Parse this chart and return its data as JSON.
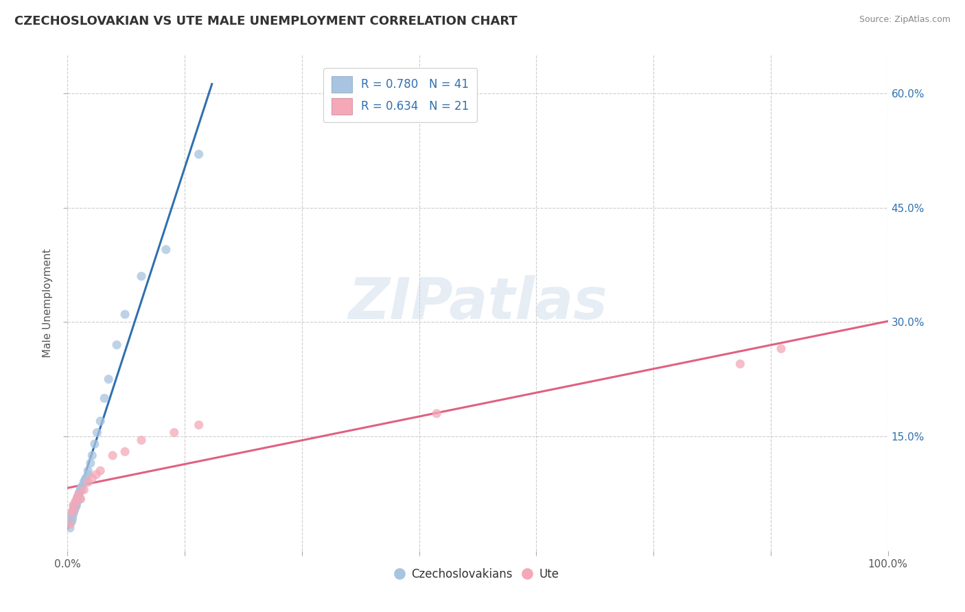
{
  "title": "CZECHOSLOVAKIAN VS UTE MALE UNEMPLOYMENT CORRELATION CHART",
  "source_text": "Source: ZipAtlas.com",
  "ylabel": "Male Unemployment",
  "xlim": [
    0,
    1.0
  ],
  "ylim": [
    0,
    0.65
  ],
  "ytick_values": [
    0.15,
    0.3,
    0.45,
    0.6
  ],
  "xtick_values": [
    0.0,
    0.143,
    0.286,
    0.429,
    0.571,
    0.714,
    0.857,
    1.0
  ],
  "r_czech": 0.78,
  "n_czech": 41,
  "r_ute": 0.634,
  "n_ute": 21,
  "watermark": "ZIPatlas",
  "legend_labels": [
    "Czechoslovakians",
    "Ute"
  ],
  "czech_color": "#a8c4e0",
  "ute_color": "#f4a8b8",
  "czech_line_color": "#3070b0",
  "ute_line_color": "#e06080",
  "title_color": "#333333",
  "czech_x": [
    0.003,
    0.004,
    0.005,
    0.005,
    0.006,
    0.006,
    0.007,
    0.007,
    0.008,
    0.008,
    0.009,
    0.009,
    0.01,
    0.01,
    0.011,
    0.012,
    0.012,
    0.013,
    0.014,
    0.015,
    0.015,
    0.016,
    0.017,
    0.018,
    0.02,
    0.021,
    0.022,
    0.025,
    0.025,
    0.028,
    0.03,
    0.033,
    0.036,
    0.04,
    0.045,
    0.05,
    0.06,
    0.07,
    0.09,
    0.12,
    0.16
  ],
  "czech_y": [
    0.03,
    0.04,
    0.038,
    0.045,
    0.042,
    0.05,
    0.048,
    0.055,
    0.052,
    0.058,
    0.055,
    0.06,
    0.058,
    0.065,
    0.06,
    0.065,
    0.07,
    0.072,
    0.075,
    0.068,
    0.078,
    0.082,
    0.08,
    0.085,
    0.09,
    0.092,
    0.095,
    0.1,
    0.105,
    0.115,
    0.125,
    0.14,
    0.155,
    0.17,
    0.2,
    0.225,
    0.27,
    0.31,
    0.36,
    0.395,
    0.52
  ],
  "ute_x": [
    0.003,
    0.005,
    0.007,
    0.008,
    0.01,
    0.012,
    0.014,
    0.016,
    0.02,
    0.025,
    0.03,
    0.035,
    0.04,
    0.055,
    0.07,
    0.09,
    0.13,
    0.16,
    0.45,
    0.82,
    0.87
  ],
  "ute_y": [
    0.035,
    0.05,
    0.06,
    0.055,
    0.065,
    0.07,
    0.075,
    0.068,
    0.08,
    0.09,
    0.095,
    0.1,
    0.105,
    0.125,
    0.13,
    0.145,
    0.155,
    0.165,
    0.18,
    0.245,
    0.265
  ]
}
